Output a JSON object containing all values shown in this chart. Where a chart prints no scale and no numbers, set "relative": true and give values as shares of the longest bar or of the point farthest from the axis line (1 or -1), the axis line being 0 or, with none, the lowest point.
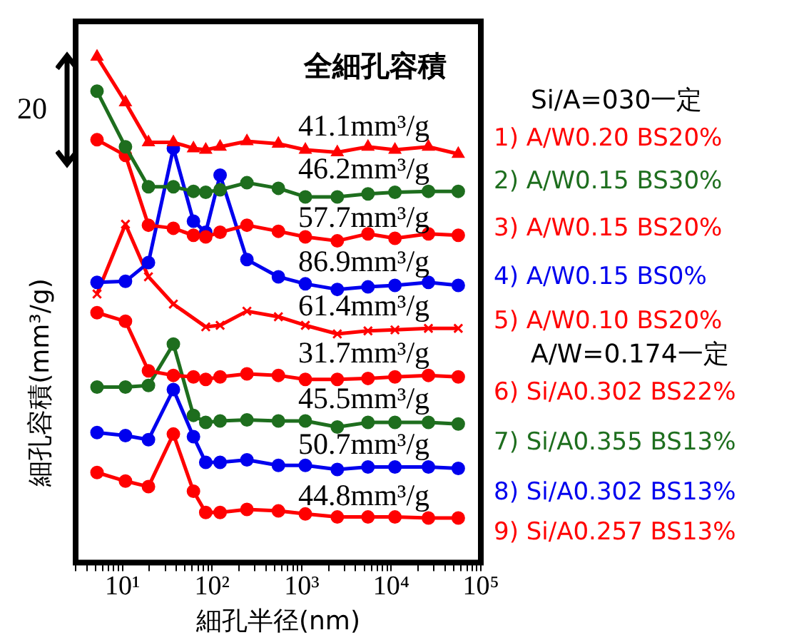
{
  "chart_data": {
    "type": "line",
    "relative": true,
    "log": "x",
    "xlabel": "細孔半径(nm)",
    "ylabel": "細孔容積(mm³/g)",
    "x": [
      5.2,
      10.8,
      19.5,
      37,
      62,
      85,
      123,
      245,
      550,
      1100,
      2500,
      5500,
      11000,
      26000,
      56000
    ],
    "xlim": [
      3,
      100000
    ],
    "xticks": [
      {
        "value": 3,
        "label": null
      },
      {
        "value": 4,
        "label": null
      },
      {
        "value": 5,
        "label": null
      },
      {
        "value": 6,
        "label": null
      },
      {
        "value": 7,
        "label": null
      },
      {
        "value": 8,
        "label": null
      },
      {
        "value": 9,
        "label": null
      },
      {
        "value": 10,
        "label": "10¹"
      },
      {
        "value": 20,
        "label": null
      },
      {
        "value": 30,
        "label": null
      },
      {
        "value": 40,
        "label": null
      },
      {
        "value": 50,
        "label": null
      },
      {
        "value": 60,
        "label": null
      },
      {
        "value": 70,
        "label": null
      },
      {
        "value": 80,
        "label": null
      },
      {
        "value": 90,
        "label": null
      },
      {
        "value": 100,
        "label": "10²"
      },
      {
        "value": 200,
        "label": null
      },
      {
        "value": 300,
        "label": null
      },
      {
        "value": 400,
        "label": null
      },
      {
        "value": 500,
        "label": null
      },
      {
        "value": 600,
        "label": null
      },
      {
        "value": 700,
        "label": null
      },
      {
        "value": 800,
        "label": null
      },
      {
        "value": 900,
        "label": null
      },
      {
        "value": 1000,
        "label": "10³"
      },
      {
        "value": 2000,
        "label": null
      },
      {
        "value": 3000,
        "label": null
      },
      {
        "value": 4000,
        "label": null
      },
      {
        "value": 5000,
        "label": null
      },
      {
        "value": 6000,
        "label": null
      },
      {
        "value": 7000,
        "label": null
      },
      {
        "value": 8000,
        "label": null
      },
      {
        "value": 9000,
        "label": null
      },
      {
        "value": 10000,
        "label": "10⁴"
      },
      {
        "value": 20000,
        "label": null
      },
      {
        "value": 30000,
        "label": null
      },
      {
        "value": 40000,
        "label": null
      },
      {
        "value": 50000,
        "label": null
      },
      {
        "value": 60000,
        "label": null
      },
      {
        "value": 70000,
        "label": null
      },
      {
        "value": 80000,
        "label": null
      },
      {
        "value": 90000,
        "label": null
      },
      {
        "value": 100000,
        "label": "10⁵"
      }
    ],
    "grid": false,
    "legend": "right",
    "line_style": "solid",
    "series": [
      {
        "name": "1) A/W0.20 BS20%",
        "color": "#ff0000",
        "marker": "triangle",
        "values": [
          1.0,
          0.91,
          0.831,
          0.831,
          0.819,
          0.816,
          0.822,
          0.833,
          0.828,
          0.816,
          0.811,
          0.822,
          0.816,
          0.822,
          0.808
        ]
      },
      {
        "name": "2) A/W0.15 BS30%",
        "color": "#1e6e1e",
        "marker": "circle",
        "values": [
          0.932,
          0.822,
          0.743,
          0.743,
          0.734,
          0.732,
          0.737,
          0.751,
          0.74,
          0.723,
          0.723,
          0.729,
          0.732,
          0.734,
          0.734
        ]
      },
      {
        "name": "3) A/W0.15 BS20%",
        "color": "#ff0000",
        "marker": "circle",
        "values": [
          0.836,
          0.805,
          0.667,
          0.661,
          0.647,
          0.644,
          0.653,
          0.667,
          0.655,
          0.644,
          0.636,
          0.65,
          0.641,
          0.65,
          0.647
        ]
      },
      {
        "name": "4) A/W0.15 BS0%",
        "color": "#0000ee",
        "marker": "circle",
        "values": [
          0.554,
          0.556,
          0.593,
          0.819,
          0.675,
          0.653,
          0.766,
          0.599,
          0.565,
          0.551,
          0.54,
          0.545,
          0.548,
          0.554,
          0.548
        ]
      },
      {
        "name": "5) A/W0.10 BS20%",
        "color": "#ff0000",
        "marker": "cross",
        "x": [
          5.2,
          10.8,
          19.5,
          37,
          85,
          123,
          245,
          550,
          1100,
          2500,
          5500,
          11000,
          26000,
          56000
        ],
        "values": [
          0.531,
          0.669,
          0.565,
          0.511,
          0.466,
          0.469,
          0.497,
          0.486,
          0.469,
          0.452,
          0.458,
          0.46,
          0.463,
          0.463
        ]
      },
      {
        "name": "6) Si/A0.302 BS22%",
        "color": "#ff0000",
        "marker": "circle",
        "values": [
          0.494,
          0.477,
          0.379,
          0.37,
          0.367,
          0.362,
          0.367,
          0.373,
          0.37,
          0.362,
          0.362,
          0.364,
          0.367,
          0.37,
          0.367
        ]
      },
      {
        "name": "7) Si/A0.355 BS13%",
        "color": "#1e6e1e",
        "marker": "circle",
        "values": [
          0.347,
          0.347,
          0.35,
          0.432,
          0.291,
          0.277,
          0.28,
          0.282,
          0.28,
          0.28,
          0.268,
          0.277,
          0.277,
          0.277,
          0.274
        ]
      },
      {
        "name": "8) Si/A0.302 BS13%",
        "color": "#0000ee",
        "marker": "circle",
        "values": [
          0.257,
          0.251,
          0.243,
          0.342,
          0.249,
          0.198,
          0.198,
          0.203,
          0.192,
          0.192,
          0.184,
          0.189,
          0.189,
          0.189,
          0.186
        ]
      },
      {
        "name": "9) Si/A0.257 BS13%",
        "color": "#ff0000",
        "marker": "circle",
        "values": [
          0.178,
          0.161,
          0.15,
          0.254,
          0.141,
          0.099,
          0.099,
          0.105,
          0.102,
          0.096,
          0.09,
          0.09,
          0.09,
          0.088,
          0.088
        ]
      }
    ],
    "annotations": [
      "全細孔容積",
      "41.1mm³/g",
      "46.2mm³/g",
      "57.7mm³/g",
      "86.9mm³/g",
      "61.4mm³/g",
      "31.7mm³/g",
      "45.5mm³/g",
      "50.7mm³/g",
      "44.8mm³/g",
      "20",
      "Si/A=030一定",
      "A/W=0.174一定"
    ]
  }
}
